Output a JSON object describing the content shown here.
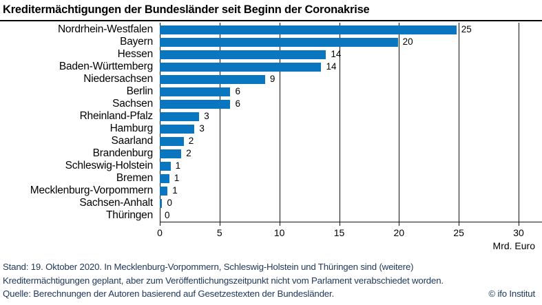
{
  "title": "Kreditermächtigungen der Bundesländer seit Beginn der Coronakrise",
  "chart_data": {
    "type": "bar",
    "orientation": "horizontal",
    "title": "Kreditermächtigungen der Bundesländer seit Beginn der Coronakrise",
    "categories": [
      "Nordrhein-Westfalen",
      "Bayern",
      "Hessen",
      "Baden-Württemberg",
      "Niedersachsen",
      "Berlin",
      "Sachsen",
      "Rheinland-Pfalz",
      "Hamburg",
      "Saarland",
      "Brandenburg",
      "Schleswig-Holstein",
      "Bremen",
      "Mecklenburg-Vorpommern",
      "Sachsen-Anhalt",
      "Thüringen"
    ],
    "values": [
      25,
      20,
      14,
      14,
      9,
      6,
      6,
      3,
      3,
      2,
      2,
      1,
      1,
      1,
      0,
      0
    ],
    "bar_lengths_mrd_euro": [
      24.8,
      19.9,
      13.9,
      13.5,
      8.8,
      5.9,
      5.9,
      3.3,
      2.9,
      2.0,
      1.8,
      0.9,
      0.8,
      0.65,
      0.2,
      0
    ],
    "xlabel": "Mrd. Euro",
    "x_ticks": [
      0,
      5,
      10,
      15,
      20,
      25,
      30
    ],
    "xlim": [
      0,
      30
    ],
    "grid": true,
    "legend": "none",
    "bar_color": "#0a76bf",
    "gridline_color": "#111111"
  },
  "footer": {
    "line1": "Stand: 19. Oktober 2020. In Mecklenburg-Vorpommern, Schleswig-Holstein und Thüringen sind (weitere)",
    "line2": "Kreditermächtigungen geplant, aber zum Veröffentlichungszeitpunkt nicht vom Parlament verabschiedet worden.",
    "source": "Quelle: Berechnungen der Autoren basierend auf Gesetzestexten der Bundesländer.",
    "copyright": "© ifo Institut",
    "text_color": "#20395c"
  }
}
